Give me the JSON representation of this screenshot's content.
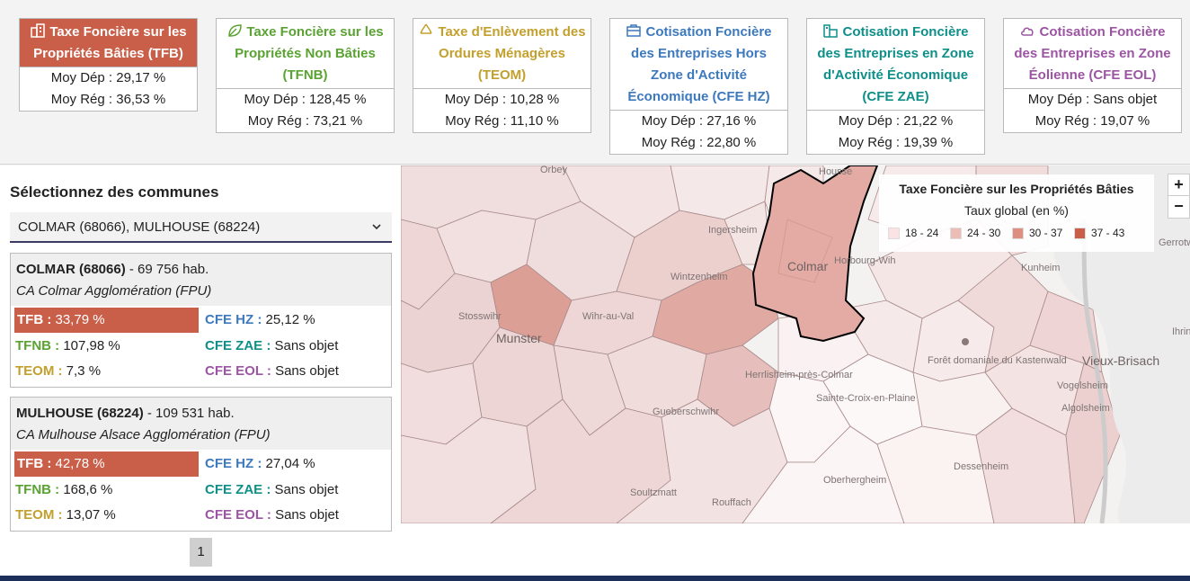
{
  "cards": [
    {
      "id": "tfb",
      "title": "Taxe Foncière sur les Propriétés Bâties (TFB)",
      "dep": "Moy Dép : 29,17 %",
      "reg": "Moy Rég : 36,53 %",
      "color": "#c95f48",
      "icon": "building-icon",
      "active": true
    },
    {
      "id": "tfnb",
      "title": "Taxe Foncière sur les Propriétés Non Bâties (TFNB)",
      "dep": "Moy Dép : 128,45 %",
      "reg": "Moy Rég : 73,21 %",
      "color": "#5aa232",
      "icon": "leaf-icon"
    },
    {
      "id": "teom",
      "title": "Taxe d'Enlèvement des Ordures Ménagères (TEOM)",
      "dep": "Moy Dép : 10,28 %",
      "reg": "Moy Rég : 11,10 %",
      "color": "#c3a02d",
      "icon": "recycle-icon"
    },
    {
      "id": "hz",
      "title": "Cotisation Foncière des Entreprises Hors Zone d'Activité Économique (CFE HZ)",
      "dep": "Moy Dép : 27,16 %",
      "reg": "Moy Rég : 22,80 %",
      "color": "#3d79bd",
      "icon": "briefcase-icon"
    },
    {
      "id": "zae",
      "title": "Cotisation Foncière des Entreprises en Zone d'Activité Économique (CFE ZAE)",
      "dep": "Moy Dép : 21,22 %",
      "reg": "Moy Rég : 19,39 %",
      "color": "#0e8f88",
      "icon": "factory-icon"
    },
    {
      "id": "eol",
      "title": "Cotisation Foncière des Entreprises en Zone Éolienne (CFE EOL)",
      "dep": "Moy Dép : Sans objet",
      "reg": "Moy Rég : 19,07 %",
      "color": "#9c55a3",
      "icon": "cloud-icon"
    }
  ],
  "selector": {
    "title": "Sélectionnez des communes",
    "value": "COLMAR (68066), MULHOUSE (68224)"
  },
  "communes": [
    {
      "name": "COLMAR (68066)",
      "pop": " - 69 756 hab.",
      "epci": "CA Colmar Agglomération (FPU)",
      "tfb_label": "TFB :",
      "tfb": "33,79 %",
      "tfnb_label": "TFNB :",
      "tfnb": "107,98 %",
      "teom_label": "TEOM :",
      "teom": "7,3 %",
      "hz_label": "CFE HZ :",
      "hz": "25,12 %",
      "zae_label": "CFE ZAE :",
      "zae": "Sans objet",
      "eol_label": "CFE EOL :",
      "eol": "Sans objet"
    },
    {
      "name": "MULHOUSE (68224)",
      "pop": " - 109 531 hab.",
      "epci": "CA Mulhouse Alsace Agglomération (FPU)",
      "tfb_label": "TFB :",
      "tfb": "42,78 %",
      "tfnb_label": "TFNB :",
      "tfnb": "168,6 %",
      "teom_label": "TEOM :",
      "teom": "13,07 %",
      "hz_label": "CFE HZ :",
      "hz": "27,04 %",
      "zae_label": "CFE ZAE :",
      "zae": "Sans objet",
      "eol_label": "CFE EOL :",
      "eol": "Sans objet"
    }
  ],
  "pager": {
    "page": "1"
  },
  "legend": {
    "title": "Taxe Foncière sur les Propriétés Bâties",
    "subtitle": "Taux global (en %)",
    "items": [
      {
        "label": "18 - 24",
        "color": "#fbe3e3"
      },
      {
        "label": "24 - 30",
        "color": "#ecbcb7"
      },
      {
        "label": "30 - 37",
        "color": "#dd8f82"
      },
      {
        "label": "37 - 43",
        "color": "#c95f48"
      }
    ]
  },
  "zoom": {
    "in": "+",
    "out": "−"
  },
  "map_places": {
    "orbey": "Orbey",
    "housse": "Housse",
    "colmar": "Colmar",
    "horbourg": "Horbourg-Wih",
    "ingersheim": "Ingersheim",
    "wintzenheim": "Wintzenheim",
    "stosswihr": "Stosswihr",
    "wihr": "Wihr-au-Val",
    "munster": "Munster",
    "herrlisheim": "Herrlisheim-près-Colmar",
    "ste_croix": "Sainte-Croix-en-Plaine",
    "gueberschwihr": "Gueberschwihr",
    "foret": "Forêt domaniale du Kastenwald",
    "vieux_brisach": "Vieux-Brisach",
    "vogelsheim": "Vogelsheim",
    "algolsheim": "Algolsheim",
    "dessenheim": "Dessenheim",
    "oberhergheim": "Oberhergheim",
    "soultzmatt": "Soultzmatt",
    "rouffach": "Rouffach",
    "kunheim": "Kunheim",
    "ihringen": "Ihrin",
    "gerrotwei": "Gerrotwei"
  }
}
